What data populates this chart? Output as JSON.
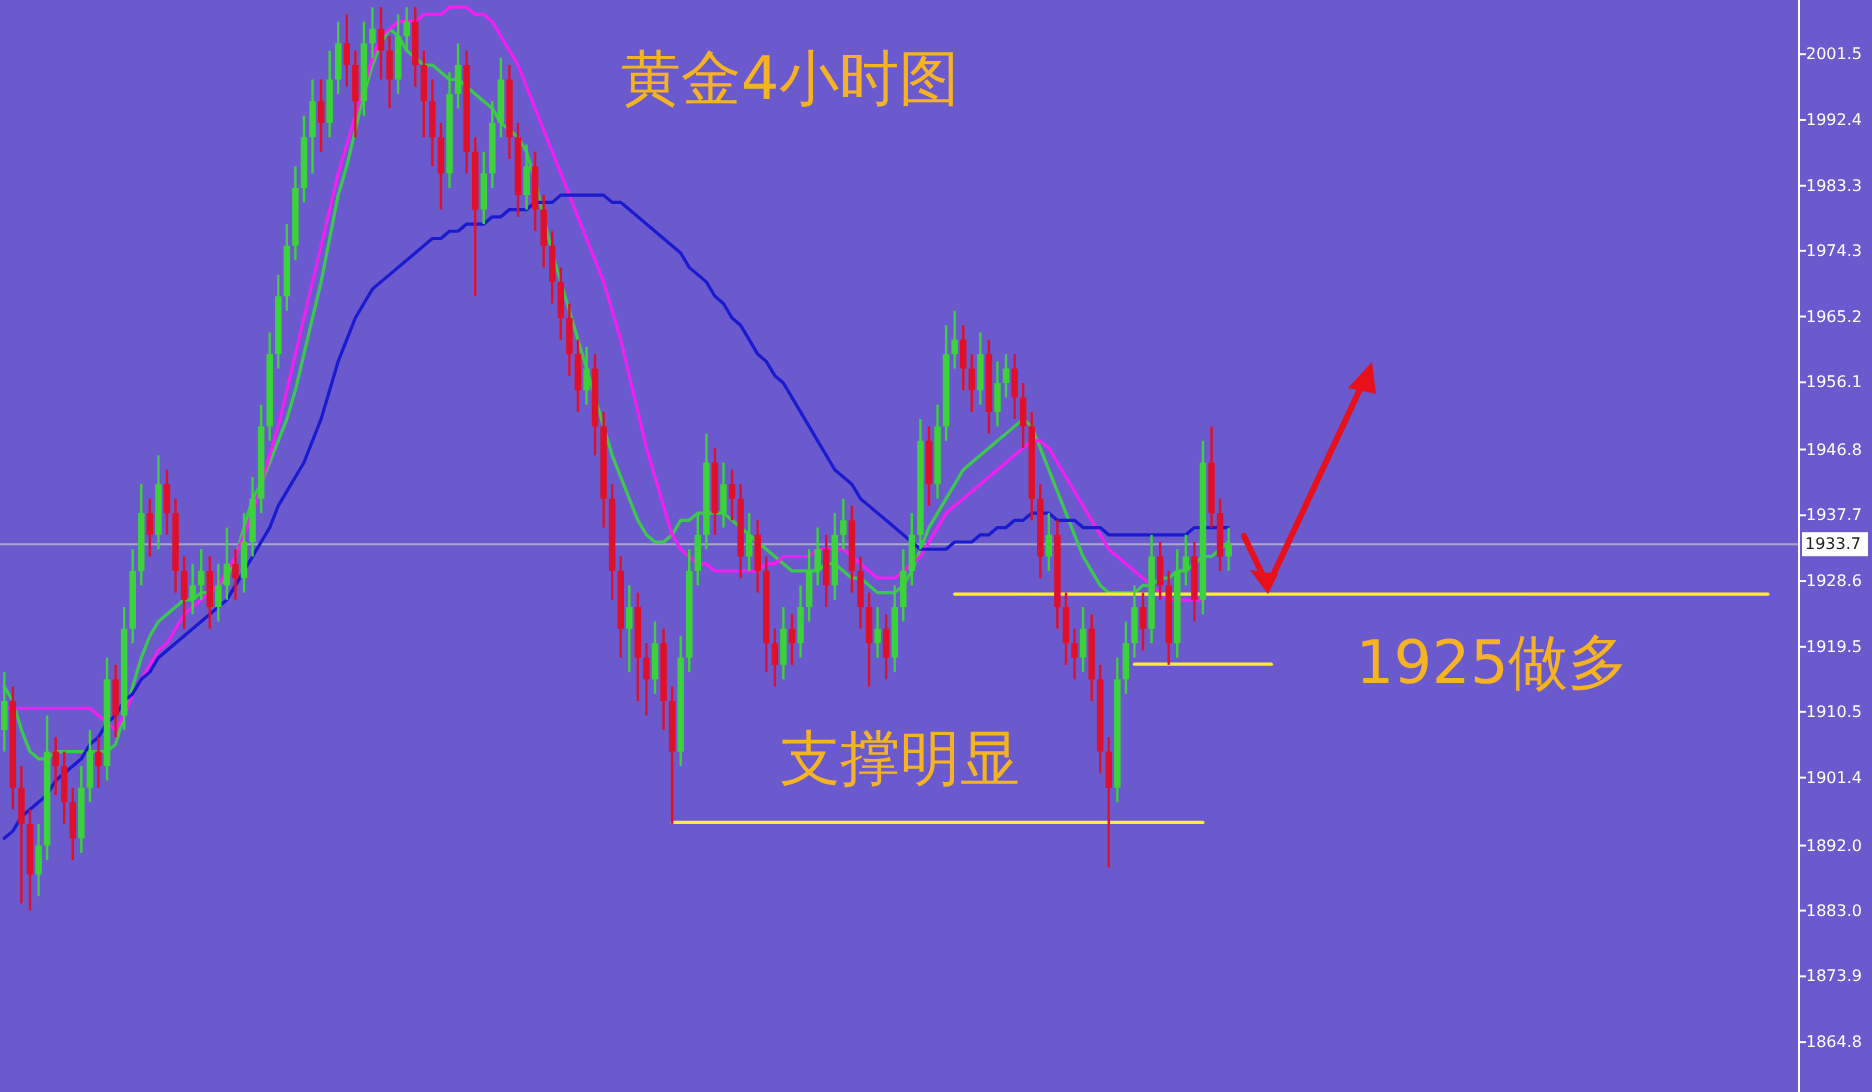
{
  "chart_data": {
    "type": "candlestick",
    "annotations": [
      "黄金4小时图",
      "支撑明显",
      "1925做多"
    ],
    "categories": [
      null,
      null,
      null,
      null,
      null,
      null,
      null,
      null,
      null,
      null,
      null,
      null,
      null,
      null,
      null,
      null,
      null,
      null,
      null,
      null,
      null,
      null,
      null,
      null,
      null,
      null,
      null,
      null,
      null,
      null,
      null,
      null,
      null,
      null,
      null,
      null,
      null,
      null,
      null,
      null,
      null,
      null,
      null,
      null,
      null,
      null,
      null,
      null,
      null,
      null,
      null,
      null,
      null,
      null,
      null,
      null,
      null,
      null,
      null,
      null,
      null,
      null,
      null,
      null,
      null,
      null,
      null,
      null,
      null,
      null,
      null,
      null,
      null,
      null,
      null,
      null,
      null,
      null,
      null,
      null,
      null,
      null,
      null,
      null,
      null,
      null,
      null,
      null,
      null,
      null,
      null,
      null,
      null,
      null,
      null,
      null,
      null,
      null,
      null,
      null,
      null,
      null,
      null,
      null,
      null,
      null,
      null,
      null,
      null,
      null,
      null,
      null,
      null,
      null,
      null,
      null,
      null,
      null,
      null,
      null,
      null,
      null,
      null,
      null,
      null,
      null,
      null,
      null,
      null,
      null,
      null,
      null,
      null,
      null,
      null,
      null,
      null,
      null,
      null,
      null,
      null,
      null,
      null,
      null,
      null,
      null,
      null,
      null,
      null,
      null,
      null,
      null,
      null,
      null,
      null,
      null,
      null,
      null,
      null,
      null,
      null,
      null,
      null,
      null,
      null,
      null,
      null,
      null,
      null,
      null,
      null,
      null,
      null,
      null,
      null,
      null,
      null,
      null,
      null,
      null,
      null,
      null,
      null,
      null,
      null,
      null,
      null,
      null,
      null,
      null,
      null,
      null,
      null,
      null,
      null,
      null,
      null,
      null,
      null,
      null,
      null,
      null,
      null,
      null,
      null,
      null,
      null,
      null,
      null,
      null
    ],
    "ohlc": [
      [
        1908,
        1916,
        1905,
        1912
      ],
      [
        1912,
        1914,
        1897,
        1900
      ],
      [
        1900,
        1903,
        1884,
        1895
      ],
      [
        1895,
        1897,
        1883,
        1888
      ],
      [
        1888,
        1895,
        1885,
        1892
      ],
      [
        1892,
        1910,
        1890,
        1905
      ],
      [
        1905,
        1907,
        1899,
        1903
      ],
      [
        1903,
        1905,
        1895,
        1898
      ],
      [
        1898,
        1900,
        1890,
        1893
      ],
      [
        1893,
        1903,
        1891,
        1900
      ],
      [
        1900,
        1908,
        1898,
        1905
      ],
      [
        1905,
        1907,
        1900,
        1903
      ],
      [
        1903,
        1918,
        1901,
        1915
      ],
      [
        1915,
        1917,
        1907,
        1910
      ],
      [
        1910,
        1925,
        1908,
        1922
      ],
      [
        1922,
        1933,
        1920,
        1930
      ],
      [
        1930,
        1942,
        1928,
        1938
      ],
      [
        1938,
        1940,
        1932,
        1935
      ],
      [
        1935,
        1946,
        1933,
        1942
      ],
      [
        1942,
        1944,
        1935,
        1938
      ],
      [
        1938,
        1940,
        1927,
        1930
      ],
      [
        1930,
        1932,
        1922,
        1926
      ],
      [
        1926,
        1931,
        1924,
        1928
      ],
      [
        1928,
        1933,
        1926,
        1930
      ],
      [
        1930,
        1932,
        1922,
        1925
      ],
      [
        1925,
        1931,
        1923,
        1928
      ],
      [
        1928,
        1936,
        1926,
        1931
      ],
      [
        1931,
        1933,
        1926,
        1929
      ],
      [
        1929,
        1938,
        1927,
        1934
      ],
      [
        1934,
        1943,
        1932,
        1940
      ],
      [
        1940,
        1953,
        1938,
        1950
      ],
      [
        1950,
        1963,
        1948,
        1960
      ],
      [
        1960,
        1971,
        1958,
        1968
      ],
      [
        1968,
        1978,
        1966,
        1975
      ],
      [
        1975,
        1986,
        1973,
        1983
      ],
      [
        1983,
        1993,
        1981,
        1990
      ],
      [
        1990,
        1998,
        1985,
        1995
      ],
      [
        1995,
        1998,
        1988,
        1992
      ],
      [
        1992,
        2002,
        1990,
        1998
      ],
      [
        1998,
        2006,
        1996,
        2003
      ],
      [
        2003,
        2007,
        1997,
        2000
      ],
      [
        2000,
        2002,
        1990,
        1995
      ],
      [
        1995,
        2006,
        1993,
        2003
      ],
      [
        2003,
        2008,
        2001,
        2005
      ],
      [
        2005,
        2008,
        1998,
        2002
      ],
      [
        2002,
        2004,
        1994,
        1998
      ],
      [
        1998,
        2007,
        1996,
        2004
      ],
      [
        2004,
        2008,
        2002,
        2006
      ],
      [
        2006,
        2008,
        1997,
        2000
      ],
      [
        2000,
        2002,
        1990,
        1995
      ],
      [
        1995,
        1998,
        1986,
        1990
      ],
      [
        1990,
        1992,
        1980,
        1985
      ],
      [
        1985,
        1999,
        1983,
        1996
      ],
      [
        1996,
        2003,
        1994,
        2000
      ],
      [
        2000,
        2002,
        1985,
        1988
      ],
      [
        1988,
        1990,
        1968,
        1980
      ],
      [
        1980,
        1988,
        1978,
        1985
      ],
      [
        1985,
        1995,
        1983,
        1992
      ],
      [
        1992,
        2001,
        1990,
        1998
      ],
      [
        1998,
        2000,
        1987,
        1990
      ],
      [
        1990,
        1992,
        1979,
        1982
      ],
      [
        1982,
        1989,
        1980,
        1986
      ],
      [
        1986,
        1988,
        1977,
        1980
      ],
      [
        1980,
        1982,
        1972,
        1975
      ],
      [
        1975,
        1977,
        1967,
        1970
      ],
      [
        1970,
        1972,
        1962,
        1965
      ],
      [
        1965,
        1967,
        1957,
        1960
      ],
      [
        1960,
        1962,
        1952,
        1955
      ],
      [
        1955,
        1961,
        1953,
        1958
      ],
      [
        1958,
        1960,
        1946,
        1950
      ],
      [
        1950,
        1952,
        1936,
        1940
      ],
      [
        1940,
        1942,
        1926,
        1930
      ],
      [
        1930,
        1932,
        1918,
        1922
      ],
      [
        1922,
        1928,
        1916,
        1925
      ],
      [
        1925,
        1927,
        1912,
        1918
      ],
      [
        1918,
        1920,
        1910,
        1915
      ],
      [
        1915,
        1923,
        1913,
        1920
      ],
      [
        1920,
        1922,
        1908,
        1912
      ],
      [
        1912,
        1914,
        1895,
        1905
      ],
      [
        1905,
        1921,
        1903,
        1918
      ],
      [
        1918,
        1933,
        1916,
        1930
      ],
      [
        1930,
        1938,
        1928,
        1935
      ],
      [
        1935,
        1949,
        1933,
        1945
      ],
      [
        1945,
        1947,
        1935,
        1938
      ],
      [
        1938,
        1945,
        1936,
        1942
      ],
      [
        1942,
        1944,
        1937,
        1940
      ],
      [
        1940,
        1942,
        1929,
        1932
      ],
      [
        1932,
        1938,
        1930,
        1935
      ],
      [
        1935,
        1937,
        1927,
        1930
      ],
      [
        1930,
        1932,
        1916,
        1920
      ],
      [
        1920,
        1922,
        1914,
        1917
      ],
      [
        1917,
        1925,
        1915,
        1922
      ],
      [
        1922,
        1924,
        1917,
        1920
      ],
      [
        1920,
        1928,
        1918,
        1925
      ],
      [
        1925,
        1933,
        1923,
        1930
      ],
      [
        1930,
        1936,
        1928,
        1933
      ],
      [
        1933,
        1935,
        1925,
        1928
      ],
      [
        1928,
        1938,
        1926,
        1935
      ],
      [
        1935,
        1940,
        1933,
        1937
      ],
      [
        1937,
        1939,
        1927,
        1930
      ],
      [
        1930,
        1932,
        1922,
        1925
      ],
      [
        1925,
        1927,
        1914,
        1920
      ],
      [
        1920,
        1925,
        1918,
        1922
      ],
      [
        1922,
        1924,
        1915,
        1918
      ],
      [
        1918,
        1928,
        1916,
        1925
      ],
      [
        1925,
        1933,
        1923,
        1930
      ],
      [
        1930,
        1938,
        1928,
        1935
      ],
      [
        1935,
        1951,
        1933,
        1948
      ],
      [
        1948,
        1950,
        1939,
        1942
      ],
      [
        1942,
        1953,
        1940,
        1950
      ],
      [
        1950,
        1964,
        1948,
        1960
      ],
      [
        1960,
        1966,
        1958,
        1962
      ],
      [
        1962,
        1964,
        1955,
        1958
      ],
      [
        1958,
        1960,
        1952,
        1955
      ],
      [
        1955,
        1963,
        1953,
        1960
      ],
      [
        1960,
        1962,
        1949,
        1952
      ],
      [
        1952,
        1959,
        1950,
        1956
      ],
      [
        1956,
        1960,
        1954,
        1958
      ],
      [
        1958,
        1960,
        1951,
        1954
      ],
      [
        1954,
        1956,
        1947,
        1950
      ],
      [
        1950,
        1952,
        1937,
        1940
      ],
      [
        1940,
        1942,
        1929,
        1932
      ],
      [
        1932,
        1938,
        1930,
        1935
      ],
      [
        1935,
        1937,
        1922,
        1925
      ],
      [
        1925,
        1927,
        1917,
        1920
      ],
      [
        1920,
        1922,
        1915,
        1918
      ],
      [
        1918,
        1925,
        1916,
        1922
      ],
      [
        1922,
        1924,
        1912,
        1915
      ],
      [
        1915,
        1917,
        1902,
        1905
      ],
      [
        1905,
        1907,
        1889,
        1900
      ],
      [
        1900,
        1918,
        1898,
        1915
      ],
      [
        1915,
        1923,
        1913,
        1920
      ],
      [
        1920,
        1928,
        1918,
        1925
      ],
      [
        1925,
        1927,
        1919,
        1922
      ],
      [
        1922,
        1935,
        1920,
        1932
      ],
      [
        1932,
        1934,
        1926,
        1928
      ],
      [
        1928,
        1930,
        1917,
        1920
      ],
      [
        1920,
        1933,
        1918,
        1930
      ],
      [
        1930,
        1935,
        1928,
        1932
      ],
      [
        1932,
        1934,
        1923,
        1926
      ],
      [
        1926,
        1948,
        1924,
        1945
      ],
      [
        1945,
        1950,
        1936,
        1938
      ],
      [
        1938,
        1940,
        1930,
        1932
      ],
      [
        1932,
        1936,
        1930,
        1933.7
      ],
      null,
      null,
      null,
      null,
      null,
      null,
      null,
      null,
      null,
      null,
      null,
      null,
      null,
      null,
      null,
      null,
      null,
      null,
      null,
      null,
      null,
      null,
      null,
      null,
      null,
      null,
      null,
      null,
      null,
      null,
      null,
      null,
      null,
      null,
      null,
      null,
      null,
      null,
      null,
      null,
      null,
      null,
      null,
      null,
      null,
      null,
      null,
      null,
      null,
      null,
      null,
      null,
      null,
      null,
      null,
      null,
      null,
      null,
      null,
      null,
      null,
      null,
      null,
      null,
      null,
      null
    ],
    "colors": [
      "#3cd23c",
      "#e0102a",
      "#e0102a",
      "#e0102a",
      "#3cd23c",
      "#3cd23c",
      "#e0102a",
      "#e0102a",
      "#e0102a",
      "#3cd23c",
      "#3cd23c",
      "#e0102a",
      "#3cd23c",
      "#e0102a",
      "#3cd23c",
      "#3cd23c",
      "#3cd23c",
      "#e0102a",
      "#3cd23c",
      "#e0102a",
      "#e0102a",
      "#e0102a",
      "#3cd23c",
      "#3cd23c",
      "#e0102a",
      "#3cd23c",
      "#3cd23c",
      "#e0102a",
      "#3cd23c",
      "#3cd23c",
      "#3cd23c",
      "#3cd23c",
      "#3cd23c",
      "#3cd23c",
      "#3cd23c",
      "#3cd23c",
      "#3cd23c",
      "#e0102a",
      "#3cd23c",
      "#3cd23c",
      "#e0102a",
      "#e0102a",
      "#3cd23c",
      "#3cd23c",
      "#e0102a",
      "#e0102a",
      "#3cd23c",
      "#3cd23c",
      "#e0102a",
      "#e0102a",
      "#e0102a",
      "#e0102a",
      "#3cd23c",
      "#3cd23c",
      "#e0102a",
      "#e0102a",
      "#3cd23c",
      "#3cd23c",
      "#3cd23c",
      "#e0102a",
      "#e0102a",
      "#3cd23c",
      "#e0102a",
      "#e0102a",
      "#e0102a",
      "#e0102a",
      "#e0102a",
      "#e0102a",
      "#3cd23c",
      "#e0102a",
      "#e0102a",
      "#e0102a",
      "#e0102a",
      "#3cd23c",
      "#e0102a",
      "#e0102a",
      "#3cd23c",
      "#e0102a",
      "#e0102a",
      "#3cd23c",
      "#3cd23c",
      "#3cd23c",
      "#3cd23c",
      "#e0102a",
      "#3cd23c",
      "#e0102a",
      "#e0102a",
      "#3cd23c",
      "#e0102a",
      "#e0102a",
      "#e0102a",
      "#3cd23c",
      "#e0102a",
      "#3cd23c",
      "#3cd23c",
      "#3cd23c",
      "#e0102a",
      "#3cd23c",
      "#3cd23c",
      "#e0102a",
      "#e0102a",
      "#e0102a",
      "#3cd23c",
      "#e0102a",
      "#3cd23c",
      "#3cd23c",
      "#3cd23c",
      "#3cd23c",
      "#e0102a",
      "#3cd23c",
      "#3cd23c",
      "#3cd23c",
      "#e0102a",
      "#e0102a",
      "#3cd23c",
      "#e0102a",
      "#3cd23c",
      "#3cd23c",
      "#e0102a",
      "#e0102a",
      "#e0102a",
      "#e0102a",
      "#3cd23c",
      "#e0102a",
      "#e0102a",
      "#e0102a",
      "#3cd23c",
      "#e0102a",
      "#e0102a",
      "#e0102a",
      "#3cd23c",
      "#3cd23c",
      "#3cd23c",
      "#e0102a",
      "#3cd23c",
      "#e0102a",
      "#e0102a",
      "#3cd23c",
      "#3cd23c",
      "#e0102a",
      "#3cd23c",
      "#e0102a",
      "#e0102a",
      "#3cd23c",
      null,
      null,
      null,
      null,
      null,
      null,
      null,
      null,
      null,
      null,
      null,
      null,
      null,
      null,
      null,
      null,
      null,
      null,
      null,
      null,
      null,
      null,
      null,
      null,
      null,
      null,
      null,
      null,
      null,
      null,
      null,
      null,
      null,
      null,
      null,
      null,
      null,
      null,
      null,
      null,
      null,
      null,
      null,
      null,
      null,
      null,
      null,
      null,
      null,
      null,
      null,
      null,
      null,
      null,
      null,
      null,
      null,
      null,
      null,
      null,
      null,
      null,
      null,
      null,
      null,
      null
    ],
    "series": [
      {
        "type": "line",
        "color": "#3cc850",
        "values": [
          1914,
          1912,
          1908,
          1905,
          1904,
          1904,
          1905,
          1905,
          1905,
          1905,
          1905,
          1905,
          1905,
          1906,
          1910,
          1914,
          1918,
          1921,
          1923,
          1924,
          1925,
          1926,
          1926,
          1927,
          1927,
          1928,
          1929,
          1932,
          1936,
          1940,
          1942,
          1945,
          1948,
          1951,
          1955,
          1960,
          1965,
          1970,
          1976,
          1982,
          1986,
          1991,
          1996,
          2000,
          2003,
          2005,
          2004,
          2002,
          2001,
          2000,
          2000,
          1999,
          1998,
          1998,
          1997,
          1996,
          1995,
          1994,
          1992,
          1991,
          1990,
          1988,
          1984,
          1979,
          1974,
          1970,
          1966,
          1962,
          1958,
          1954,
          1950,
          1946,
          1943,
          1940,
          1937,
          1935,
          1934,
          1934,
          1935,
          1937,
          1937,
          1938,
          1938,
          1938,
          1938,
          1937,
          1936,
          1935,
          1934,
          1933,
          1932,
          1931,
          1930,
          1930,
          1930,
          1930,
          1931,
          1931,
          1930,
          1929,
          1929,
          1928,
          1927,
          1927,
          1927,
          1928,
          1930,
          1933,
          1936,
          1938,
          1940,
          1942,
          1944,
          1945,
          1946,
          1947,
          1948,
          1949,
          1950,
          1951,
          1950,
          1947,
          1944,
          1941,
          1938,
          1935,
          1932,
          1930,
          1928,
          1927,
          1927,
          1927,
          1927,
          1928,
          1928,
          1929,
          1929,
          1930,
          1930,
          1931,
          1932,
          1932,
          1933,
          1934,
          null,
          null,
          null,
          null,
          null,
          null,
          null,
          null,
          null,
          null,
          null,
          null,
          null,
          null,
          null,
          null,
          null,
          null,
          null,
          null,
          null,
          null,
          null,
          null,
          null,
          null,
          null,
          null,
          null,
          null,
          null,
          null,
          null,
          null,
          null,
          null,
          null,
          null,
          null,
          null,
          null,
          null,
          null,
          null,
          null,
          null,
          null,
          null,
          null,
          null,
          null,
          null,
          null,
          null,
          null,
          null,
          null,
          null,
          null,
          null,
          null,
          null,
          null,
          null,
          null,
          null
        ]
      },
      {
        "type": "line",
        "color": "#f020f0",
        "values": [
          1911,
          1911,
          1911,
          1911,
          1911,
          1911,
          1911,
          1911,
          1911,
          1911,
          1911,
          1910,
          1909,
          1908,
          1910,
          1913,
          1915,
          1917,
          1919,
          1920,
          1922,
          1924,
          1925,
          1926,
          1927,
          1928,
          1930,
          1932,
          1935,
          1938,
          1942,
          1946,
          1950,
          1955,
          1960,
          1965,
          1970,
          1975,
          1980,
          1985,
          1989,
          1993,
          1997,
          2001,
          2004,
          2005,
          2006,
          2006,
          2006,
          2007,
          2007,
          2007,
          2008,
          2008,
          2008,
          2007,
          2007,
          2006,
          2004,
          2002,
          2000,
          1997,
          1994,
          1991,
          1988,
          1985,
          1982,
          1979,
          1976,
          1973,
          1970,
          1966,
          1962,
          1957,
          1952,
          1947,
          1943,
          1939,
          1935,
          1933,
          1932,
          1931,
          1931,
          1930,
          1930,
          1930,
          1930,
          1930,
          1930,
          1931,
          1931,
          1932,
          1932,
          1932,
          1932,
          1933,
          1933,
          1933,
          1933,
          1932,
          1931,
          1930,
          1929,
          1929,
          1929,
          1930,
          1931,
          1932,
          1934,
          1936,
          1938,
          1939,
          1940,
          1941,
          1942,
          1943,
          1944,
          1945,
          1946,
          1947,
          1948,
          1948,
          1947,
          1945,
          1943,
          1941,
          1939,
          1937,
          1935,
          1933,
          1932,
          1931,
          1930,
          1929,
          1928,
          1927,
          1926,
          1926,
          1926,
          1926,
          1926,
          null,
          null,
          null,
          null,
          null,
          null,
          null,
          null,
          null,
          null,
          null,
          null,
          null,
          null,
          null,
          null,
          null,
          null,
          null,
          null,
          null,
          null,
          null,
          null,
          null,
          null,
          null,
          null,
          null,
          null,
          null,
          null,
          null,
          null,
          null,
          null,
          null,
          null,
          null,
          null,
          null,
          null,
          null,
          null,
          null,
          null,
          null,
          null,
          null,
          null,
          null,
          null,
          null,
          null,
          null,
          null,
          null,
          null,
          null,
          null,
          null,
          null,
          null,
          null,
          null,
          null,
          null,
          null,
          null
        ]
      },
      {
        "type": "line",
        "color": "#1a1ad0",
        "values": [
          1893,
          1894,
          1896,
          1897,
          1898,
          1899,
          1901,
          1902,
          1903,
          1904,
          1906,
          1907,
          1909,
          1910,
          1912,
          1913,
          1915,
          1916,
          1918,
          1919,
          1920,
          1921,
          1922,
          1923,
          1924,
          1925,
          1926,
          1928,
          1930,
          1932,
          1934,
          1936,
          1939,
          1941,
          1943,
          1945,
          1948,
          1951,
          1955,
          1959,
          1962,
          1965,
          1967,
          1969,
          1970,
          1971,
          1972,
          1973,
          1974,
          1975,
          1976,
          1976,
          1977,
          1977,
          1978,
          1978,
          1978,
          1979,
          1979,
          1980,
          1980,
          1980,
          1981,
          1981,
          1981,
          1982,
          1982,
          1982,
          1982,
          1982,
          1982,
          1981,
          1981,
          1980,
          1979,
          1978,
          1977,
          1976,
          1975,
          1974,
          1972,
          1971,
          1970,
          1968,
          1967,
          1965,
          1964,
          1962,
          1960,
          1959,
          1957,
          1956,
          1954,
          1952,
          1950,
          1948,
          1946,
          1944,
          1943,
          1942,
          1940,
          1939,
          1938,
          1937,
          1936,
          1935,
          1934,
          1933,
          1933,
          1933,
          1933,
          1934,
          1934,
          1934,
          1935,
          1935,
          1936,
          1936,
          1937,
          1937,
          1938,
          1938,
          1938,
          1937,
          1937,
          1937,
          1936,
          1936,
          1936,
          1935,
          1935,
          1935,
          1935,
          1935,
          1935,
          1935,
          1935,
          1935,
          1935,
          1936,
          1936,
          1936,
          1936,
          1936,
          null,
          null,
          null,
          null,
          null,
          null,
          null,
          null,
          null,
          null,
          null,
          null,
          null,
          null,
          null,
          null,
          null,
          null,
          null,
          null,
          null,
          null,
          null,
          null,
          null,
          null,
          null,
          null,
          null,
          null,
          null,
          null,
          null,
          null,
          null,
          null,
          null,
          null,
          null,
          null,
          null,
          null,
          null,
          null,
          null,
          null,
          null,
          null,
          null,
          null,
          null,
          null,
          null,
          null,
          null,
          null,
          null,
          null,
          null,
          null,
          null,
          null,
          null,
          null,
          null,
          null
        ]
      },
      {
        "type": "line",
        "color": "#ffee30",
        "values": [
          null,
          null,
          null,
          null,
          null,
          null,
          null,
          null,
          null,
          null,
          null,
          null,
          null,
          null,
          null,
          null,
          null,
          null,
          null,
          null,
          null,
          null,
          null,
          null,
          null,
          null,
          null,
          null,
          null,
          null,
          null,
          null,
          null,
          null,
          null,
          null,
          null,
          null,
          null,
          null,
          null,
          null,
          null,
          null,
          null,
          null,
          null,
          null,
          null,
          null,
          null,
          null,
          null,
          null,
          null,
          null,
          null,
          null,
          null,
          null,
          null,
          null,
          null,
          null,
          null,
          null,
          null,
          null,
          null,
          null,
          null,
          null,
          null,
          null,
          null,
          null,
          null,
          null,
          1895.2,
          1895.2,
          1895.2,
          1895.2,
          1895.2,
          1895.2,
          1895.2,
          1895.2,
          1895.2,
          1895.2,
          1895.2,
          1895.2,
          1895.2,
          1895.2,
          1895.2,
          1895.2,
          1895.2,
          1895.2,
          1895.2,
          1895.2,
          1895.2,
          1895.2,
          1895.2,
          1895.2,
          1895.2,
          1895.2,
          1895.2,
          1895.2,
          1895.2,
          1895.2,
          1895.2,
          1895.2,
          1895.2,
          1895.2,
          1895.2,
          1895.2,
          1895.2,
          1895.2,
          1895.2,
          1895.2,
          1895.2,
          1895.2,
          1895.2,
          1895.2,
          1895.2,
          1895.2,
          1895.2,
          1895.2,
          1895.2,
          1895.2,
          1895.2,
          1895.2,
          1895.2,
          1895.2,
          1895.2,
          1895.2,
          1895.2,
          1895.2,
          1895.2,
          1895.2,
          1895.2,
          1895.2,
          1895.2,
          null,
          null,
          null,
          null,
          null,
          null,
          null,
          null,
          null,
          null,
          null,
          null,
          null,
          null,
          null,
          null,
          null,
          null,
          null,
          null,
          null,
          null,
          null,
          null,
          null,
          null,
          null,
          null,
          null,
          null,
          null,
          null,
          null,
          null,
          null,
          null,
          null,
          null,
          null,
          null,
          null,
          null,
          null,
          null,
          null,
          null,
          null,
          null,
          null,
          null,
          null,
          null,
          null,
          null,
          null,
          null,
          null,
          null,
          null,
          null,
          null,
          null,
          null,
          null,
          null,
          null,
          null,
          null,
          null
        ]
      },
      {
        "type": "line",
        "color": "#ffee30",
        "values": [
          null,
          null,
          null,
          null,
          null,
          null,
          null,
          null,
          null,
          null,
          null,
          null,
          null,
          null,
          null,
          null,
          null,
          null,
          null,
          null,
          null,
          null,
          null,
          null,
          null,
          null,
          null,
          null,
          null,
          null,
          null,
          null,
          null,
          null,
          null,
          null,
          null,
          null,
          null,
          null,
          null,
          null,
          null,
          null,
          null,
          null,
          null,
          null,
          null,
          null,
          null,
          null,
          null,
          null,
          null,
          null,
          null,
          null,
          null,
          null,
          null,
          null,
          null,
          null,
          null,
          null,
          null,
          null,
          null,
          null,
          null,
          null,
          null,
          null,
          null,
          null,
          null,
          null,
          null,
          null,
          null,
          null,
          null,
          null,
          null,
          null,
          null,
          null,
          null,
          null,
          null,
          null,
          null,
          null,
          null,
          null,
          null,
          null,
          null,
          null,
          null,
          null,
          null,
          null,
          null,
          null,
          null,
          null,
          null,
          null,
          null,
          1926.8,
          1926.8,
          1926.8,
          1926.8,
          1926.8,
          1926.8,
          1926.8,
          1926.8,
          1926.8,
          1926.8,
          1926.8,
          1926.8,
          1926.8,
          1926.8,
          1926.8,
          1926.8,
          1926.8,
          1926.8,
          1926.8,
          1926.8,
          1926.8,
          1926.8,
          1926.8,
          1926.8,
          1926.8,
          1926.8,
          1926.8,
          1926.8,
          1926.8,
          1926.8,
          1926.8,
          1926.8,
          1926.8,
          1926.8,
          1926.8,
          1926.8,
          1926.8,
          1926.8,
          1926.8,
          1926.8,
          1926.8,
          1926.8,
          1926.8,
          1926.8,
          1926.8,
          1926.8,
          1926.8,
          1926.8,
          1926.8,
          1926.8,
          1926.8,
          1926.8,
          1926.8,
          1926.8,
          1926.8,
          1926.8,
          1926.8,
          1926.8,
          1926.8,
          1926.8,
          1926.8,
          1926.8,
          1926.8,
          1926.8,
          1926.8,
          1926.8,
          1926.8,
          1926.8,
          1926.8,
          1926.8,
          1926.8,
          1926.8,
          1926.8,
          1926.8,
          1926.8,
          1926.8,
          1926.8,
          1926.8,
          1926.8,
          1926.8,
          1926.8,
          1926.8,
          1926.8,
          1926.8,
          1926.8,
          1926.8,
          1926.8,
          1926.8,
          1926.8,
          1926.8,
          1926.8,
          1926.8,
          1926.8,
          1926.8,
          1926.8,
          1926.8,
          null,
          null,
          null
        ]
      },
      {
        "type": "line",
        "color": "#ffee30",
        "values": [
          null,
          null,
          null,
          null,
          null,
          null,
          null,
          null,
          null,
          null,
          null,
          null,
          null,
          null,
          null,
          null,
          null,
          null,
          null,
          null,
          null,
          null,
          null,
          null,
          null,
          null,
          null,
          null,
          null,
          null,
          null,
          null,
          null,
          null,
          null,
          null,
          null,
          null,
          null,
          null,
          null,
          null,
          null,
          null,
          null,
          null,
          null,
          null,
          null,
          null,
          null,
          null,
          null,
          null,
          null,
          null,
          null,
          null,
          null,
          null,
          null,
          null,
          null,
          null,
          null,
          null,
          null,
          null,
          null,
          null,
          null,
          null,
          null,
          null,
          null,
          null,
          null,
          null,
          null,
          null,
          null,
          null,
          null,
          null,
          null,
          null,
          null,
          null,
          null,
          null,
          null,
          null,
          null,
          null,
          null,
          null,
          null,
          null,
          null,
          null,
          null,
          null,
          null,
          null,
          null,
          null,
          null,
          null,
          null,
          null,
          null,
          null,
          null,
          null,
          null,
          null,
          null,
          null,
          null,
          null,
          null,
          null,
          null,
          null,
          null,
          null,
          null,
          null,
          null,
          null,
          null,
          null,
          1917.1,
          1917.1,
          1917.1,
          1917.1,
          1917.1,
          1917.1,
          1917.1,
          1917.1,
          1917.1,
          1917.1,
          1917.1,
          1917.1,
          1917.1,
          1917.1,
          1917.1,
          1917.1,
          1917.1,
          null,
          null,
          null,
          null,
          null,
          null,
          null,
          null,
          null,
          null,
          null,
          null,
          null,
          null,
          null,
          null,
          null,
          null,
          null,
          null,
          null,
          null,
          null,
          null,
          null,
          null,
          null,
          null,
          null,
          null,
          null,
          null,
          null,
          null,
          null,
          null,
          null,
          null,
          null,
          null,
          null,
          null,
          null,
          null,
          null,
          null,
          null,
          null,
          null,
          null,
          null,
          null,
          null,
          null,
          null,
          null,
          null,
          null,
          null,
          null,
          null
        ]
      }
    ],
    "ylim": [
      1857.9,
      2009.0
    ],
    "yticks": [
      {
        "value": 2001.5,
        "label": "2001.5"
      },
      {
        "value": 1992.4,
        "label": "1992.4"
      },
      {
        "value": 1983.3,
        "label": "1983.3"
      },
      {
        "value": 1974.3,
        "label": "1974.3"
      },
      {
        "value": 1965.2,
        "label": "1965.2"
      },
      {
        "value": 1956.1,
        "label": "1956.1"
      },
      {
        "value": 1946.8,
        "label": "1946.8"
      },
      {
        "value": 1937.7,
        "label": "1937.7"
      },
      {
        "value": 1928.6,
        "label": "1928.6"
      },
      {
        "value": 1919.5,
        "label": "1919.5"
      },
      {
        "value": 1910.5,
        "label": "1910.5"
      },
      {
        "value": 1901.4,
        "label": "1901.4"
      },
      {
        "value": 1892.0,
        "label": "1892.0"
      },
      {
        "value": 1883.0,
        "label": "1883.0"
      },
      {
        "value": 1873.9,
        "label": "1873.9"
      },
      {
        "value": 1864.8,
        "label": "1864.8"
      }
    ],
    "ref_lines": [
      {
        "axis": "y",
        "value": 1933.7,
        "label": "1933.7",
        "color": "#a8a8c8"
      }
    ],
    "tick_labels": "y"
  }
}
